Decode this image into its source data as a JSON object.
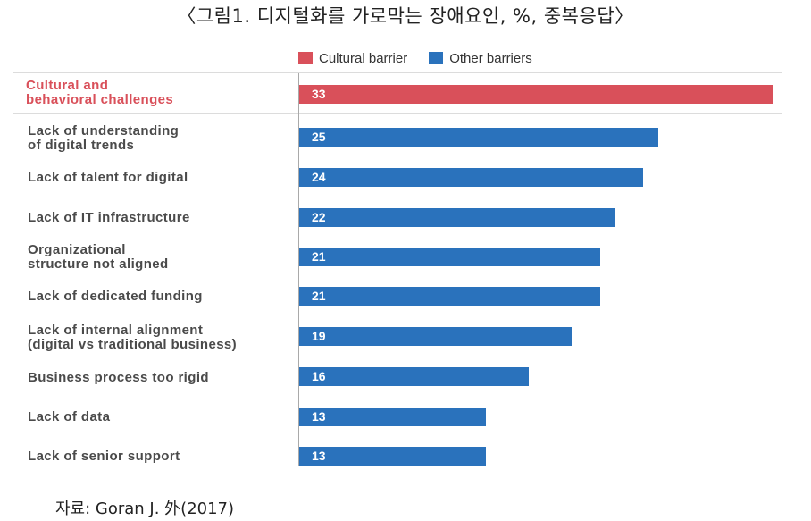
{
  "title": "〈그림1. 디지털화를 가로막는 장애요인, %, 중복응답〉",
  "source": "자료: Goran J. 外(2017)",
  "colors": {
    "cultural": "#d9505a",
    "other": "#2a72bc"
  },
  "chart_data": {
    "type": "bar",
    "orientation": "horizontal",
    "title": "〈그림1. 디지털화를 가로막는 장애요인, %, 중복응답〉",
    "xlim": [
      0,
      33
    ],
    "grid": false,
    "legend_position": "top",
    "series": [
      {
        "name": "Cultural barrier",
        "color": "#d9505a"
      },
      {
        "name": "Other barriers",
        "color": "#2a72bc"
      }
    ],
    "categories": [
      "Cultural and\nbehavioral challenges",
      "Lack of understanding\nof digital trends",
      "Lack of talent for digital",
      "Lack of IT infrastructure",
      "Organizational\nstructure not aligned",
      "Lack of dedicated funding",
      "Lack of internal alignment\n(digital vs traditional business)",
      "Business process too rigid",
      "Lack of data",
      "Lack of senior support"
    ],
    "values": [
      33,
      25,
      24,
      22,
      21,
      21,
      19,
      16,
      13,
      13
    ],
    "bar_series": [
      "Cultural barrier",
      "Other barriers",
      "Other barriers",
      "Other barriers",
      "Other barriers",
      "Other barriers",
      "Other barriers",
      "Other barriers",
      "Other barriers",
      "Other barriers"
    ]
  }
}
